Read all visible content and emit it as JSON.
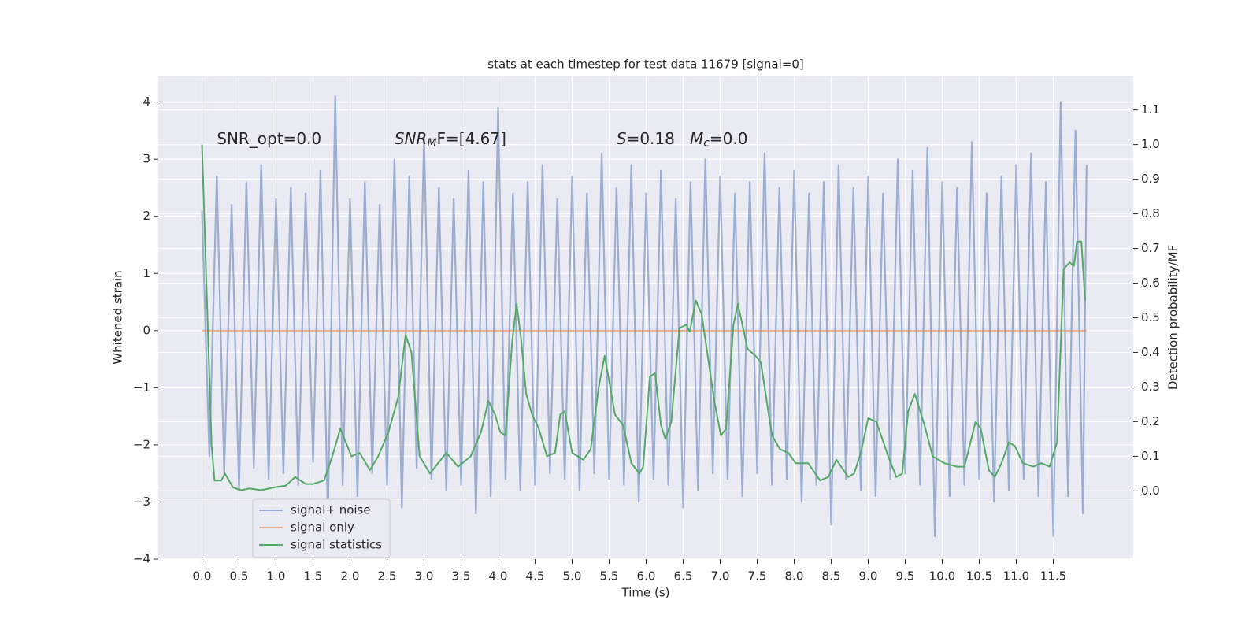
{
  "chart_data": {
    "type": "line",
    "title": "stats at each timestep for test data 11679 [signal=0]",
    "xlabel": "Time (s)",
    "ylabel": "Whitened strain",
    "y2label": "Detection probability/MF",
    "xlim": [
      -0.59,
      12.58
    ],
    "ylim": [
      -4.0,
      4.45
    ],
    "y2lim": [
      -0.197,
      1.197
    ],
    "xticks": [
      {
        "value": 0,
        "label": "0.0"
      },
      0.5,
      {
        "value": 1,
        "label": "1.0"
      },
      1.5,
      {
        "value": 2,
        "label": "2.0"
      },
      2.5,
      {
        "value": 3,
        "label": "3.0"
      },
      3.5,
      {
        "value": 4,
        "label": "4.0"
      },
      4.5,
      {
        "value": 5,
        "label": "5.0"
      },
      5.5,
      {
        "value": 6,
        "label": "6.0"
      },
      6.5,
      {
        "value": 7,
        "label": "7.0"
      },
      7.5,
      {
        "value": 8,
        "label": "8.0"
      },
      8.5,
      {
        "value": 9,
        "label": "9.0"
      },
      9.5,
      {
        "value": 10,
        "label": "10.0"
      },
      10.5,
      {
        "value": 11,
        "label": "11.0"
      },
      11.5
    ],
    "yticks": [
      {
        "value": 4,
        "label": "4"
      },
      {
        "value": 3,
        "label": "3"
      },
      {
        "value": 2,
        "label": "2"
      },
      {
        "value": 1,
        "label": "1"
      },
      0,
      {
        "value": -1,
        "label": "−1"
      },
      {
        "value": -2,
        "label": "−2"
      },
      {
        "value": -3,
        "label": "−3"
      },
      {
        "value": -4,
        "label": "−4"
      }
    ],
    "y2ticks": [
      {
        "value": 0,
        "label": "0.0"
      },
      0.1,
      0.2,
      0.3,
      0.4,
      0.5,
      0.6,
      0.7,
      0.8,
      0.9,
      {
        "value": 1,
        "label": "1.0"
      },
      1.1
    ],
    "grid": true,
    "legend": "lower left",
    "annotations": [
      {
        "x": 0.2,
        "y": 3.35,
        "parts": [
          {
            "text": "SNR_opt=0.0"
          }
        ]
      },
      {
        "x": 2.6,
        "y": 3.35,
        "parts": [
          {
            "text": "SNR",
            "style": "italic"
          },
          {
            "text": "M",
            "style": "italic-sub"
          },
          {
            "text": "F=[4.67]"
          }
        ]
      },
      {
        "x": 5.6,
        "y": 3.35,
        "parts": [
          {
            "text": "S",
            "style": "italic"
          },
          {
            "text": "=0.18   "
          },
          {
            "text": "M",
            "style": "italic"
          },
          {
            "text": "c",
            "style": "italic-sub"
          },
          {
            "text": "=0.0"
          }
        ]
      }
    ],
    "series": [
      {
        "name": "signal+ noise",
        "color": "#4c72b0",
        "opacity": 0.5,
        "x": [
          0,
          0.1,
          0.2,
          0.3,
          0.4,
          0.5,
          0.6,
          0.7,
          0.8,
          0.9,
          1,
          1.1,
          1.2,
          1.3,
          1.4,
          1.5,
          1.6,
          1.7,
          1.8,
          1.9,
          2,
          2.1,
          2.2,
          2.3,
          2.4,
          2.5,
          2.6,
          2.7,
          2.8,
          2.9,
          3,
          3.1,
          3.2,
          3.3,
          3.4,
          3.5,
          3.6,
          3.7,
          3.8,
          3.9,
          4,
          4.1,
          4.2,
          4.3,
          4.4,
          4.5,
          4.6,
          4.7,
          4.8,
          4.9,
          5,
          5.1,
          5.2,
          5.3,
          5.4,
          5.5,
          5.6,
          5.7,
          5.8,
          5.9,
          6,
          6.1,
          6.2,
          6.3,
          6.4,
          6.5,
          6.6,
          6.7,
          6.8,
          6.9,
          7,
          7.1,
          7.2,
          7.3,
          7.4,
          7.5,
          7.6,
          7.7,
          7.8,
          7.9,
          8,
          8.1,
          8.2,
          8.3,
          8.4,
          8.5,
          8.6,
          8.7,
          8.8,
          8.9,
          9,
          9.1,
          9.2,
          9.3,
          9.4,
          9.5,
          9.6,
          9.7,
          9.8,
          9.9,
          10,
          10.1,
          10.2,
          10.3,
          10.4,
          10.5,
          10.6,
          10.7,
          10.8,
          10.9,
          11,
          11.1,
          11.2,
          11.3,
          11.4,
          11.5,
          11.6,
          11.7,
          11.8,
          11.9,
          11.95
        ],
        "values": [
          2.1,
          -2.2,
          2.7,
          -2.5,
          2.2,
          -2.8,
          2.6,
          -2.4,
          2.9,
          -2.6,
          2.3,
          -2.5,
          2.5,
          -2.7,
          2.4,
          -2.3,
          2.8,
          -3.3,
          4.1,
          -2.7,
          2.3,
          -2.9,
          2.6,
          -2.5,
          2.2,
          -2.7,
          3.0,
          -3.1,
          2.7,
          -2.4,
          3.4,
          -2.6,
          2.5,
          -2.8,
          2.3,
          -2.7,
          2.8,
          -3.2,
          2.6,
          -2.9,
          3.9,
          -2.6,
          2.4,
          -2.8,
          2.6,
          -2.7,
          2.9,
          -2.5,
          2.3,
          -2.6,
          2.7,
          -2.8,
          2.4,
          -2.5,
          3.1,
          -2.6,
          2.5,
          -2.7,
          2.9,
          -3.0,
          2.4,
          -2.6,
          2.8,
          -2.7,
          2.3,
          -3.1,
          2.6,
          -2.8,
          3.0,
          -2.5,
          2.7,
          -2.6,
          2.4,
          -2.9,
          2.6,
          -2.5,
          3.1,
          -2.7,
          2.5,
          -2.6,
          2.8,
          -3.0,
          2.4,
          -2.7,
          2.6,
          -3.4,
          2.9,
          -2.6,
          2.5,
          -2.8,
          2.7,
          -2.9,
          2.4,
          -2.6,
          3.0,
          -2.5,
          2.8,
          -2.7,
          3.2,
          -3.6,
          2.6,
          -2.9,
          2.5,
          -2.7,
          3.3,
          -2.6,
          2.4,
          -3.0,
          2.7,
          -2.8,
          2.9,
          -2.6,
          3.1,
          -2.9,
          2.6,
          -3.6,
          4.0,
          -2.9,
          3.5,
          -3.2,
          2.9
        ]
      },
      {
        "name": "signal only",
        "color": "#dd8452",
        "opacity": 0.6,
        "x": [
          0,
          11.95
        ],
        "values": [
          0,
          0
        ]
      },
      {
        "name": "signal statistics",
        "color": "#55a868",
        "opacity": 1,
        "axis": "y2",
        "x": [
          0,
          0.13,
          0.17,
          0.26,
          0.31,
          0.42,
          0.53,
          0.64,
          0.8,
          0.97,
          1.13,
          1.26,
          1.4,
          1.5,
          1.65,
          1.76,
          1.87,
          2.02,
          2.13,
          2.27,
          2.38,
          2.52,
          2.65,
          2.75,
          2.83,
          2.94,
          3.08,
          3.3,
          3.46,
          3.63,
          3.77,
          3.87,
          3.96,
          4.03,
          4.1,
          4.19,
          4.25,
          4.31,
          4.38,
          4.46,
          4.55,
          4.66,
          4.77,
          4.84,
          4.9,
          5.0,
          5.15,
          5.25,
          5.36,
          5.44,
          5.58,
          5.69,
          5.8,
          5.91,
          5.96,
          6.05,
          6.12,
          6.2,
          6.26,
          6.34,
          6.45,
          6.54,
          6.59,
          6.67,
          6.75,
          6.92,
          7.01,
          7.08,
          7.18,
          7.24,
          7.37,
          7.48,
          7.55,
          7.7,
          7.81,
          7.92,
          8.02,
          8.19,
          8.35,
          8.46,
          8.57,
          8.73,
          8.81,
          8.9,
          9.0,
          9.11,
          9.27,
          9.38,
          9.46,
          9.54,
          9.63,
          9.76,
          9.87,
          10.03,
          10.2,
          10.3,
          10.45,
          10.52,
          10.63,
          10.71,
          10.8,
          10.9,
          10.98,
          11.09,
          11.23,
          11.34,
          11.45,
          11.55,
          11.64,
          11.72,
          11.78,
          11.82,
          11.88,
          11.93
        ],
        "values": [
          1.0,
          0.13,
          0.03,
          0.03,
          0.05,
          0.01,
          0.002,
          0.007,
          0.002,
          0.01,
          0.015,
          0.04,
          0.02,
          0.02,
          0.03,
          0.1,
          0.18,
          0.1,
          0.11,
          0.06,
          0.1,
          0.17,
          0.27,
          0.45,
          0.4,
          0.1,
          0.05,
          0.11,
          0.07,
          0.1,
          0.17,
          0.26,
          0.22,
          0.17,
          0.16,
          0.43,
          0.54,
          0.44,
          0.28,
          0.22,
          0.18,
          0.1,
          0.11,
          0.22,
          0.23,
          0.11,
          0.09,
          0.12,
          0.3,
          0.39,
          0.22,
          0.19,
          0.08,
          0.05,
          0.07,
          0.33,
          0.34,
          0.19,
          0.15,
          0.2,
          0.47,
          0.48,
          0.46,
          0.55,
          0.51,
          0.26,
          0.16,
          0.18,
          0.48,
          0.54,
          0.41,
          0.39,
          0.37,
          0.16,
          0.12,
          0.11,
          0.08,
          0.08,
          0.03,
          0.04,
          0.09,
          0.04,
          0.05,
          0.11,
          0.21,
          0.2,
          0.1,
          0.04,
          0.05,
          0.23,
          0.28,
          0.19,
          0.1,
          0.08,
          0.07,
          0.07,
          0.2,
          0.18,
          0.06,
          0.04,
          0.08,
          0.14,
          0.13,
          0.08,
          0.07,
          0.08,
          0.07,
          0.14,
          0.64,
          0.66,
          0.65,
          0.72,
          0.72,
          0.55
        ]
      }
    ]
  }
}
